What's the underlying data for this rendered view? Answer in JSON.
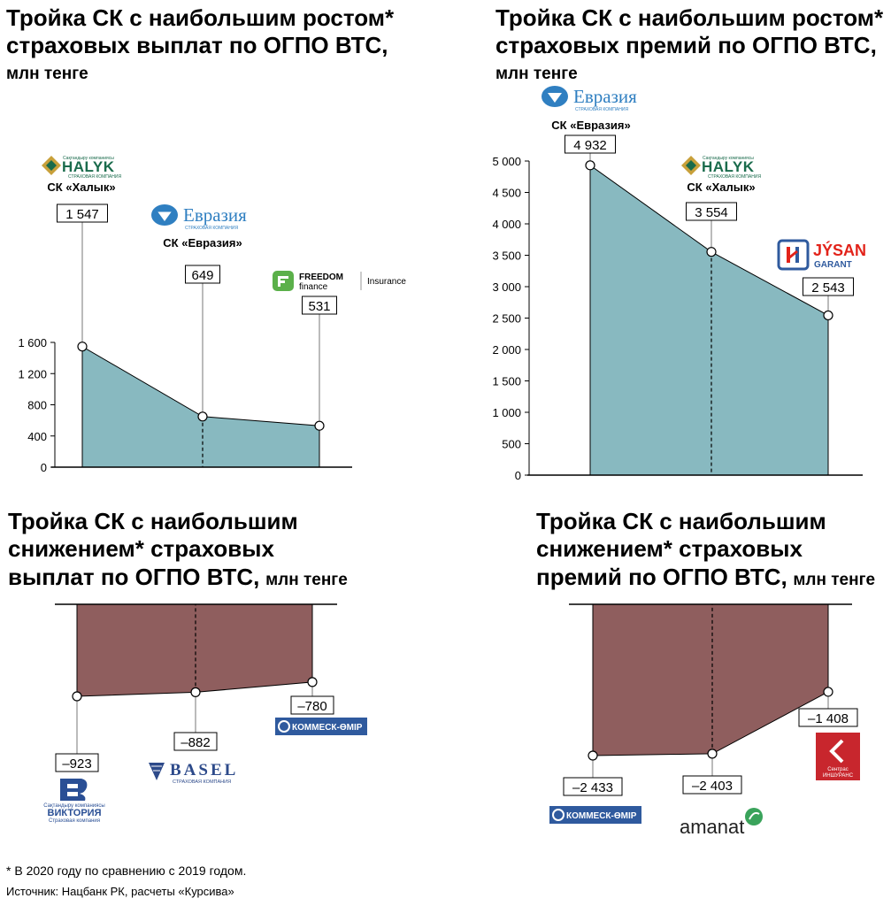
{
  "colors": {
    "growth_fill": "#88b9c0",
    "decline_fill": "#8f5e5e",
    "halyk": "#1a6b4c",
    "evraziya": "#2f7fc1",
    "freedom": "#5bb04a",
    "jysan": "#e2231a",
    "kommesk": "#2f5a9e",
    "basel": "#2d4a8a",
    "viktoriya": "#2a4f95",
    "sentras": "#c8262d",
    "amanat": "#3aa35b"
  },
  "charts": [
    {
      "title_main": "Тройка СК с наибольшим ростом* страховых выплат по ОГПО ВТС,",
      "title_unit": "млн тенге",
      "chart_data": {
        "type": "area",
        "categories": [
          "СК «Халык»",
          "СК «Евразия»",
          "Freedom Finance Insurance"
        ],
        "values": [
          1547,
          649,
          531
        ],
        "value_labels": [
          "1 547",
          "649",
          "531"
        ],
        "ylim": [
          0,
          1600
        ],
        "yticks": [
          0,
          400,
          800,
          1200,
          1600
        ],
        "ytick_labels": [
          "0",
          "400",
          "800",
          "1 200",
          "1 600"
        ]
      }
    },
    {
      "title_main": "Тройка СК с наибольшим ростом* страховых премий по ОГПО ВТС,",
      "title_unit": "млн тенге",
      "chart_data": {
        "type": "area",
        "categories": [
          "СК «Евразия»",
          "СК «Халык»",
          "Jysan Garant"
        ],
        "values": [
          4932,
          3554,
          2543
        ],
        "value_labels": [
          "4 932",
          "3 554",
          "2 543"
        ],
        "ylim": [
          0,
          5000
        ],
        "yticks": [
          0,
          500,
          1000,
          1500,
          2000,
          2500,
          3000,
          3500,
          4000,
          4500,
          5000
        ],
        "ytick_labels": [
          "0",
          "500",
          "1 000",
          "1 500",
          "2 000",
          "2 500",
          "3 000",
          "3 500",
          "4 000",
          "4 500",
          "5 000"
        ]
      }
    },
    {
      "title_main": "Тройка СК с наибольшим снижением* страховых выплат по ОГПО ВТС,",
      "title_unit": "млн тенге",
      "chart_data": {
        "type": "area",
        "categories": [
          "Виктория",
          "Basel",
          "Коммеск-Өмір"
        ],
        "values": [
          -923,
          -882,
          -780
        ],
        "value_labels": [
          "–923",
          "–882",
          "–780"
        ],
        "ylim": [
          -1000,
          0
        ]
      }
    },
    {
      "title_main": "Тройка СК с наибольшим снижением* страховых премий по ОГПО ВТС,",
      "title_unit": "млн тенге",
      "chart_data": {
        "type": "area",
        "categories": [
          "Коммеск-Өмір",
          "Amanat",
          "Сентрас Иншуранс"
        ],
        "values": [
          -2433,
          -2403,
          -1408
        ],
        "value_labels": [
          "–2 433",
          "–2 403",
          "–1 408"
        ],
        "ylim": [
          -2600,
          0
        ]
      }
    }
  ],
  "labels": {
    "halyk_caption": "СК «Халык»",
    "evraziya_caption": "СК «Евразия»",
    "halyk_word": "HALYK",
    "halyk_top": "Сақтандыру компаниясы",
    "halyk_sub": "СТРАХОВАЯ КОМПАНИЯ",
    "evraziya_word": "Евразия",
    "evraziya_sub": "СТРАХОВАЯ КОМПАНИЯ",
    "freedom_word1": "FREEDOM",
    "freedom_word2": "finance",
    "freedom_word3": "Insurance",
    "jysan_word1": "JÝSAN",
    "jysan_word2": "GARANT",
    "kommesk_word": "КОММЕСК-ӨМІР",
    "basel_word": "BASEL",
    "basel_sub": "СТРАХОВАЯ КОМПАНИЯ",
    "viktoriya_top": "Сақтандыру компаниясы",
    "viktoriya_word": "ВИКТОРИЯ",
    "viktoriya_sub": "Страховая компания",
    "sentras_word1": "Сентрас",
    "sentras_word2": "ИНШУРАНС",
    "amanat_word": "amanat"
  },
  "footnote": "* В 2020 году по сравнению с 2019 годом.",
  "source": "Источник: Нацбанк РК, расчеты «Курсива»"
}
